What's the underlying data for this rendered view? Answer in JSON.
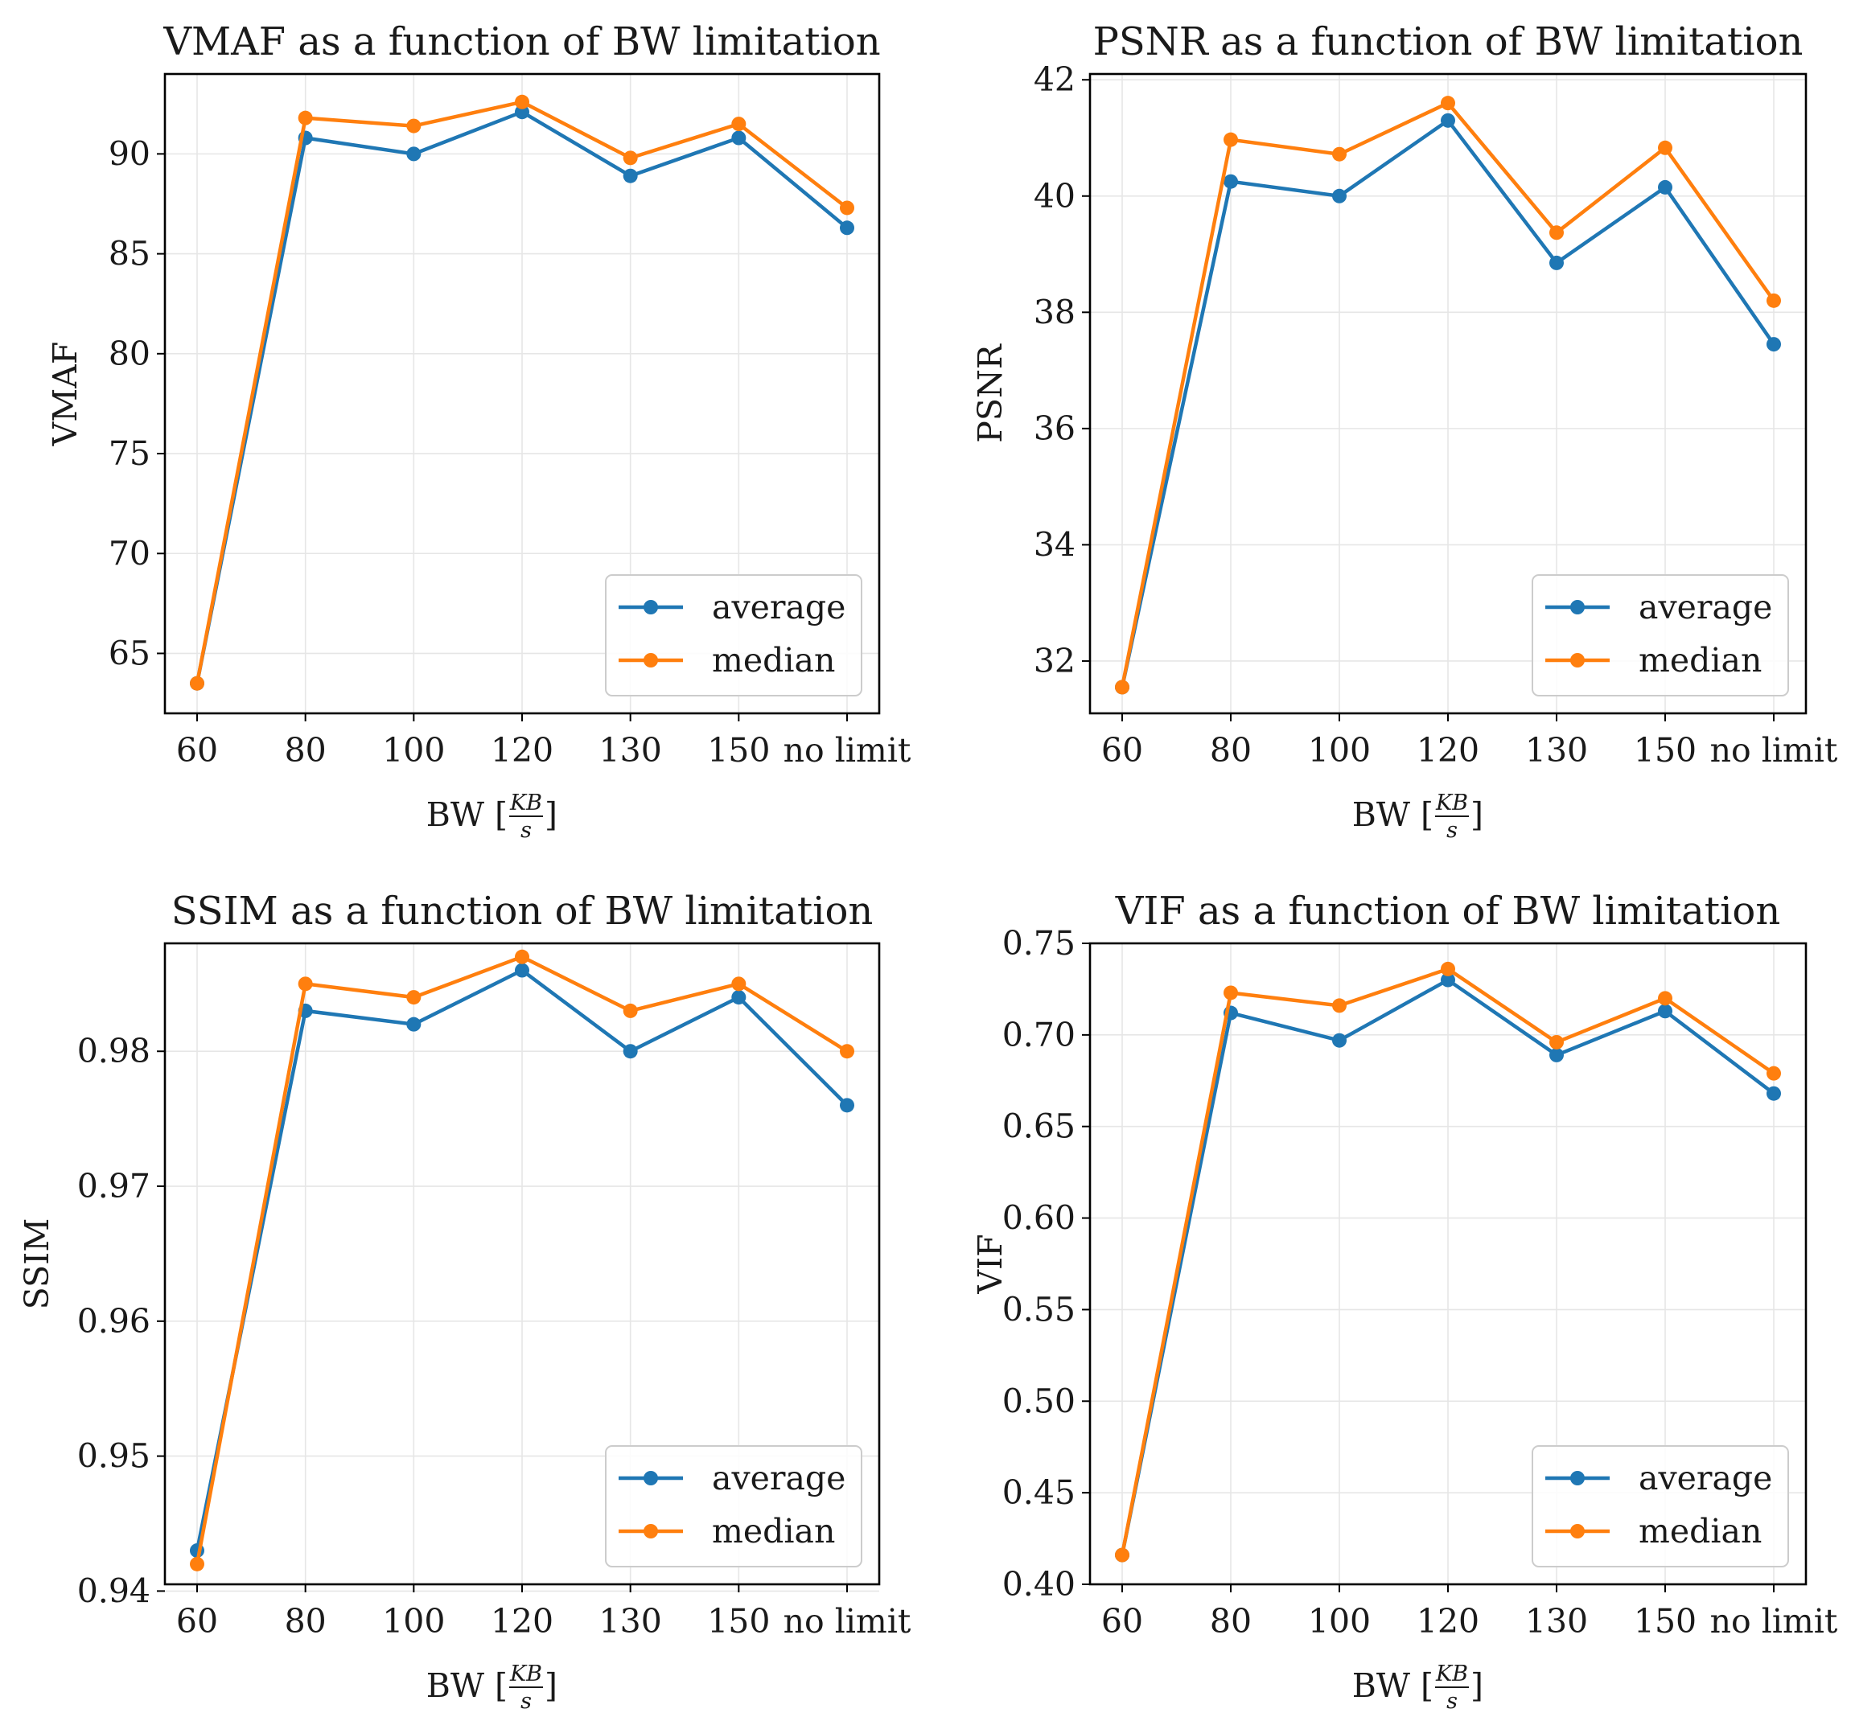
{
  "colors": {
    "average": "#1f77b4",
    "median": "#ff7f0e"
  },
  "chart_data": [
    {
      "type": "line",
      "title": "VMAF as a function of BW limitation",
      "xlabel": "BW [",
      "xlabel_unit_num": "KB",
      "xlabel_unit_den": "s",
      "xlabel_close": "]",
      "ylabel": "VMAF",
      "categories": [
        "60",
        "80",
        "100",
        "120",
        "130",
        "150",
        "no limit"
      ],
      "ylim": [
        62,
        94
      ],
      "yticks": [
        "65",
        "70",
        "75",
        "80",
        "85",
        "90"
      ],
      "legend": "lower right",
      "series": [
        {
          "name": "average",
          "values": [
            63.5,
            90.8,
            90.0,
            92.1,
            88.9,
            90.8,
            86.3
          ]
        },
        {
          "name": "median",
          "values": [
            63.5,
            91.8,
            91.4,
            92.6,
            89.8,
            91.5,
            87.3
          ]
        }
      ]
    },
    {
      "type": "line",
      "title": "PSNR as a function of BW limitation",
      "xlabel": "BW [",
      "xlabel_unit_num": "KB",
      "xlabel_unit_den": "s",
      "xlabel_close": "]",
      "ylabel": "PSNR",
      "categories": [
        "60",
        "80",
        "100",
        "120",
        "130",
        "150",
        "no limit"
      ],
      "ylim": [
        31.1,
        42.1
      ],
      "yticks": [
        "32",
        "34",
        "36",
        "38",
        "40",
        "42"
      ],
      "legend": "lower right",
      "series": [
        {
          "name": "average",
          "values": [
            31.55,
            40.25,
            40.0,
            41.3,
            38.85,
            40.15,
            37.45
          ]
        },
        {
          "name": "median",
          "values": [
            31.55,
            40.97,
            40.72,
            41.6,
            39.37,
            40.83,
            38.2
          ]
        }
      ]
    },
    {
      "type": "line",
      "title": "SSIM as a function of BW limitation",
      "xlabel": "BW [",
      "xlabel_unit_num": "KB",
      "xlabel_unit_den": "s",
      "xlabel_close": "]",
      "ylabel": "SSIM",
      "categories": [
        "60",
        "80",
        "100",
        "120",
        "130",
        "150",
        "no limit"
      ],
      "ylim": [
        0.9405,
        0.988
      ],
      "yticks": [
        "0.94",
        "0.95",
        "0.96",
        "0.97",
        "0.98"
      ],
      "legend": "lower right",
      "series": [
        {
          "name": "average",
          "values": [
            0.943,
            0.983,
            0.982,
            0.986,
            0.98,
            0.984,
            0.976
          ]
        },
        {
          "name": "median",
          "values": [
            0.942,
            0.985,
            0.984,
            0.987,
            0.983,
            0.985,
            0.98
          ]
        }
      ]
    },
    {
      "type": "line",
      "title": "VIF as a function of BW limitation",
      "xlabel": "BW [",
      "xlabel_unit_num": "KB",
      "xlabel_unit_den": "s",
      "xlabel_close": "]",
      "ylabel": "VIF",
      "categories": [
        "60",
        "80",
        "100",
        "120",
        "130",
        "150",
        "no limit"
      ],
      "ylim": [
        0.4,
        0.75
      ],
      "yticks": [
        "0.40",
        "0.45",
        "0.50",
        "0.55",
        "0.60",
        "0.65",
        "0.70",
        "0.75"
      ],
      "legend": "lower right",
      "series": [
        {
          "name": "average",
          "values": [
            0.416,
            0.712,
            0.697,
            0.73,
            0.689,
            0.713,
            0.668
          ]
        },
        {
          "name": "median",
          "values": [
            0.416,
            0.723,
            0.716,
            0.736,
            0.696,
            0.72,
            0.679
          ]
        }
      ]
    }
  ]
}
